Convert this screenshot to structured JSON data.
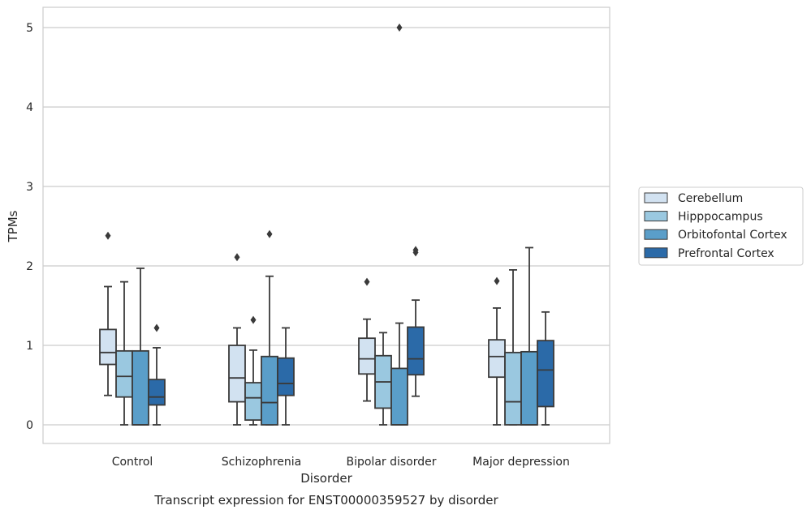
{
  "chart_data": {
    "type": "box",
    "title": "Transcript expression for ENST00000359527 by disorder",
    "xlabel": "Disorder",
    "ylabel": "TPMs",
    "ylim": [
      -0.25,
      5.25
    ],
    "yticks": [
      0,
      1,
      2,
      3,
      4,
      5
    ],
    "grid": true,
    "legend_position": "right",
    "categories": [
      "Control",
      "Schizophrenia",
      "Bipolar disorder",
      "Major depression"
    ],
    "series": [
      {
        "name": "Cerebellum",
        "color": "#d2e2f1",
        "boxes": [
          {
            "whislo": 0.37,
            "q1": 0.76,
            "med": 0.91,
            "q3": 1.2,
            "whishi": 1.74,
            "fliers": [
              2.38
            ]
          },
          {
            "whislo": 0.0,
            "q1": 0.29,
            "med": 0.59,
            "q3": 1.0,
            "whishi": 1.22,
            "fliers": [
              2.11
            ]
          },
          {
            "whislo": 0.3,
            "q1": 0.64,
            "med": 0.83,
            "q3": 1.09,
            "whishi": 1.33,
            "fliers": [
              1.8
            ]
          },
          {
            "whislo": 0.0,
            "q1": 0.6,
            "med": 0.86,
            "q3": 1.07,
            "whishi": 1.47,
            "fliers": [
              1.81
            ]
          }
        ]
      },
      {
        "name": "Hipppocampus",
        "color": "#9ac8e0",
        "boxes": [
          {
            "whislo": 0.0,
            "q1": 0.35,
            "med": 0.61,
            "q3": 0.93,
            "whishi": 1.8,
            "fliers": []
          },
          {
            "whislo": 0.0,
            "q1": 0.06,
            "med": 0.34,
            "q3": 0.53,
            "whishi": 0.94,
            "fliers": [
              1.32
            ]
          },
          {
            "whislo": 0.0,
            "q1": 0.21,
            "med": 0.54,
            "q3": 0.87,
            "whishi": 1.16,
            "fliers": []
          },
          {
            "whislo": 0.0,
            "q1": 0.0,
            "med": 0.29,
            "q3": 0.91,
            "whishi": 1.95,
            "fliers": []
          }
        ]
      },
      {
        "name": "Orbitofontal Cortex",
        "color": "#5a9ec9",
        "boxes": [
          {
            "whislo": 0.0,
            "q1": 0.0,
            "med": 0.0,
            "q3": 0.93,
            "whishi": 1.97,
            "fliers": []
          },
          {
            "whislo": 0.0,
            "q1": 0.0,
            "med": 0.28,
            "q3": 0.86,
            "whishi": 1.87,
            "fliers": [
              2.4
            ]
          },
          {
            "whislo": 0.0,
            "q1": 0.0,
            "med": 0.0,
            "q3": 0.71,
            "whishi": 1.28,
            "fliers": [
              5.0
            ]
          },
          {
            "whislo": 0.0,
            "q1": 0.0,
            "med": 0.0,
            "q3": 0.92,
            "whishi": 2.23,
            "fliers": []
          }
        ]
      },
      {
        "name": "Prefrontal Cortex",
        "color": "#2b6aa8",
        "boxes": [
          {
            "whislo": 0.0,
            "q1": 0.25,
            "med": 0.35,
            "q3": 0.57,
            "whishi": 0.97,
            "fliers": [
              1.22
            ]
          },
          {
            "whislo": 0.0,
            "q1": 0.37,
            "med": 0.52,
            "q3": 0.84,
            "whishi": 1.22,
            "fliers": []
          },
          {
            "whislo": 0.36,
            "q1": 0.63,
            "med": 0.83,
            "q3": 1.23,
            "whishi": 1.57,
            "fliers": [
              2.17,
              2.2
            ]
          },
          {
            "whislo": 0.0,
            "q1": 0.23,
            "med": 0.69,
            "q3": 1.06,
            "whishi": 1.42,
            "fliers": []
          }
        ]
      }
    ]
  },
  "colors": {
    "grid": "#cccccc",
    "frame": "#cccccc",
    "box_edge": "#3a3a3a",
    "text": "#262626"
  }
}
